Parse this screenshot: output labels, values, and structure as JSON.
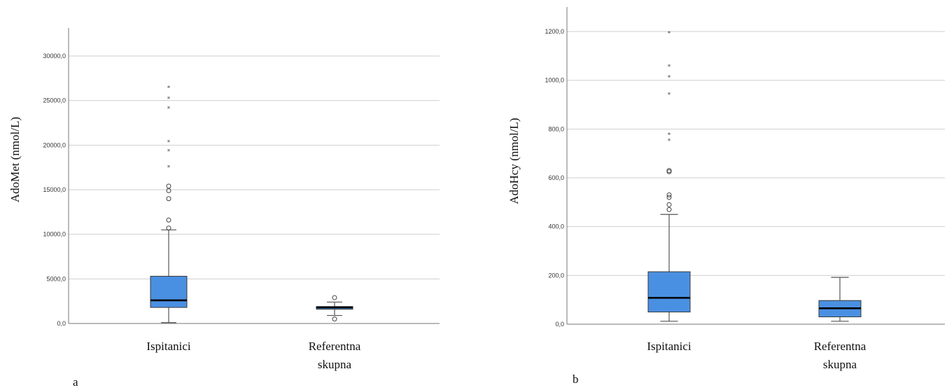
{
  "colors": {
    "box_fill": "#4a90e2"
  },
  "chart_data": [
    {
      "type": "boxplot",
      "panel_label": "a",
      "ylabel": "AdoMet (nmol/L)",
      "ylim": [
        0,
        33000
      ],
      "yticks": [
        0,
        5000,
        10000,
        15000,
        20000,
        25000,
        30000
      ],
      "ytick_labels": [
        "0,0",
        "5000,0",
        "10000,0",
        "15000,0",
        "20000,0",
        "25000,0",
        "30000,0"
      ],
      "grid": true,
      "categories": [
        {
          "label": [
            "Ispitanici"
          ],
          "whisker_low": 100,
          "q1": 1800,
          "median": 2600,
          "q3": 5300,
          "whisker_high": 10500,
          "outliers_circle": [
            10700,
            11600,
            14000,
            14900,
            15400
          ],
          "outliers_star": [
            17600,
            19400,
            20400,
            24200,
            25300,
            26500
          ]
        },
        {
          "label": [
            "Referentna",
            "skupna"
          ],
          "whisker_low": 900,
          "q1": 1600,
          "median": 1800,
          "q3": 1900,
          "whisker_high": 2400,
          "outliers_circle": [
            500,
            2900
          ],
          "outliers_star": []
        }
      ]
    },
    {
      "type": "boxplot",
      "panel_label": "b",
      "ylabel": "AdoHcy (nmol/L)",
      "ylim": [
        0,
        1300
      ],
      "yticks": [
        0,
        200,
        400,
        600,
        800,
        1000,
        1200
      ],
      "ytick_labels": [
        "0,0",
        "200,0",
        "400,0",
        "600,0",
        "800,0",
        "1000,0",
        "1200,0"
      ],
      "grid": true,
      "categories": [
        {
          "label": [
            "Ispitanici"
          ],
          "whisker_low": 12,
          "q1": 50,
          "median": 108,
          "q3": 215,
          "whisker_high": 450,
          "outliers_circle": [
            470,
            490,
            520,
            530,
            625,
            630
          ],
          "outliers_star": [
            755,
            780,
            945,
            1015,
            1060,
            1195
          ]
        },
        {
          "label": [
            "Referentna",
            "skupna"
          ],
          "whisker_low": 12,
          "q1": 30,
          "median": 65,
          "q3": 97,
          "whisker_high": 192,
          "outliers_circle": [],
          "outliers_star": []
        }
      ]
    }
  ]
}
